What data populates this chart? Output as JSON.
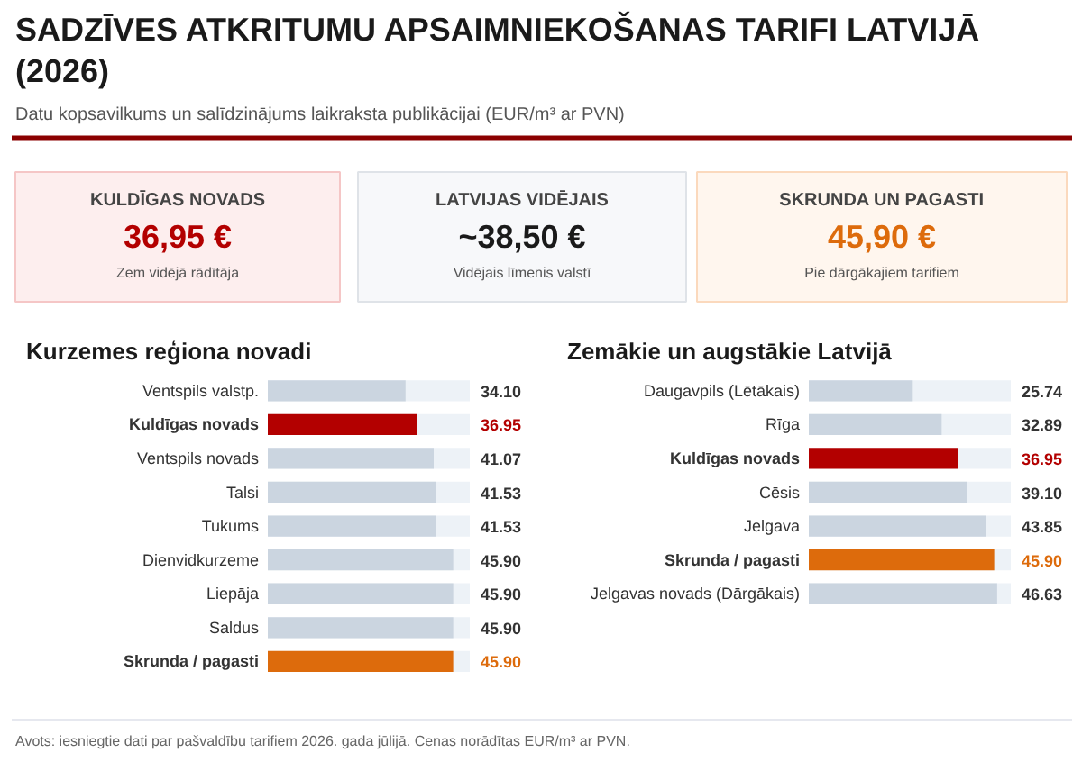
{
  "chart_data": [
    {
      "type": "other",
      "title": "SADZĪVES ATKRITUMU APSAIMNIEKOŠANAS TARIFI LATVIJĀ (2026)",
      "subtitle": "Datu kopsavilkums un salīdzinājums laikraksta publikācijai (EUR/m³ ar PVN)",
      "annotations": [
        "KULDĪGAS NOVADS",
        "36,95 €",
        "Zem vidējā rādītāja",
        "LATVIJAS VIDĒJAIS",
        "~38,50 €",
        "Vidējais līmenis valstī",
        "SKRUNDA UN PAGASTI",
        "45,90 €",
        "Pie dārgākajiem tarifiem"
      ]
    },
    {
      "type": "bar",
      "orientation": "horizontal",
      "title": "Kurzemes reģiona novadi",
      "categories": [
        "Ventspils valstp.",
        "Kuldīgas novads",
        "Ventspils novads",
        "Talsi",
        "Tukums",
        "Dienvidkurzeme",
        "Liepāja",
        "Saldus",
        "Skrunda / pagasti"
      ],
      "values": [
        34.1,
        36.95,
        41.07,
        41.53,
        41.53,
        45.9,
        45.9,
        45.9,
        45.9
      ],
      "colors": [
        "#cbd5e0",
        "#b30000",
        "#cbd5e0",
        "#cbd5e0",
        "#cbd5e0",
        "#cbd5e0",
        "#cbd5e0",
        "#cbd5e0",
        "#dd6b0c"
      ],
      "value_labels": [
        "34.10",
        "36.95",
        "41.07",
        "41.53",
        "41.53",
        "45.90",
        "45.90",
        "45.90",
        "45.90"
      ],
      "xlim": [
        0,
        50
      ],
      "tick_labels": "y",
      "grid": false
    },
    {
      "type": "bar",
      "orientation": "horizontal",
      "title": "Zemākie un augstākie Latvijā",
      "categories": [
        "Daugavpils (Lētākais)",
        "Rīga",
        "Kuldīgas novads",
        "Cēsis",
        "Jelgava",
        "Skrunda / pagasti",
        "Jelgavas novads (Dārgākais)"
      ],
      "values": [
        25.74,
        32.89,
        36.95,
        39.1,
        43.85,
        45.9,
        46.63
      ],
      "colors": [
        "#cbd5e0",
        "#cbd5e0",
        "#b30000",
        "#cbd5e0",
        "#cbd5e0",
        "#dd6b0c",
        "#cbd5e0"
      ],
      "value_labels": [
        "25.74",
        "32.89",
        "36.95",
        "39.10",
        "43.85",
        "45.90",
        "46.63"
      ],
      "xlim": [
        0,
        50
      ],
      "tick_labels": "y",
      "grid": false,
      "annotations": [
        "Avots: iesniegtie dati par pašvaldību tarifiem 2026. gada jūlijā. Cenas norādītas EUR/m³ ar PVN."
      ]
    }
  ]
}
